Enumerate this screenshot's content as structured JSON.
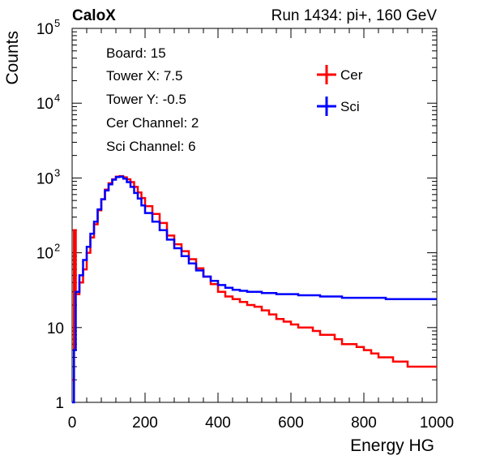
{
  "header": {
    "left_label": "CaloX",
    "right_label": "Run 1434: pi+, 160 GeV"
  },
  "info_box": {
    "lines": [
      "Board: 15",
      "Tower X: 7.5",
      "Tower Y: -0.5",
      "Cer Channel: 2",
      "Sci Channel: 6"
    ]
  },
  "chart_data": {
    "type": "line",
    "title": "",
    "xlabel": "Energy HG",
    "ylabel": "Counts",
    "xlim": [
      0,
      1000
    ],
    "ylim": [
      1,
      100000
    ],
    "yscale": "log",
    "grid": false,
    "legend_position": "top-right",
    "x_ticks": [
      "0",
      "200",
      "400",
      "600",
      "800",
      "1000"
    ],
    "y_ticks": [
      {
        "base": "1",
        "exp": ""
      },
      {
        "base": "10",
        "exp": ""
      },
      {
        "base": "10",
        "exp": "2"
      },
      {
        "base": "10",
        "exp": "3"
      },
      {
        "base": "10",
        "exp": "4"
      },
      {
        "base": "10",
        "exp": "5"
      }
    ],
    "series": [
      {
        "name": "Cer",
        "color": "#ff0000",
        "x": [
          0,
          5,
          10,
          20,
          30,
          40,
          50,
          60,
          70,
          80,
          90,
          100,
          110,
          120,
          130,
          140,
          150,
          160,
          170,
          180,
          190,
          200,
          220,
          240,
          260,
          280,
          300,
          320,
          340,
          360,
          380,
          400,
          420,
          440,
          460,
          480,
          500,
          520,
          540,
          560,
          580,
          600,
          620,
          640,
          660,
          680,
          700,
          720,
          740,
          760,
          780,
          800,
          820,
          840,
          860,
          880,
          900,
          920,
          940,
          960,
          980,
          1000
        ],
        "y": [
          2,
          200,
          28,
          40,
          60,
          100,
          160,
          240,
          370,
          520,
          700,
          850,
          960,
          1040,
          1060,
          1020,
          960,
          880,
          760,
          640,
          540,
          420,
          330,
          250,
          170,
          130,
          105,
          82,
          62,
          48,
          38,
          30,
          26,
          24,
          22,
          20,
          19,
          17,
          15,
          13,
          12,
          11,
          10,
          10,
          9,
          8,
          8,
          7,
          6,
          6,
          5.5,
          5,
          4.5,
          4,
          4,
          3.5,
          3.5,
          3,
          3,
          3,
          3,
          3
        ]
      },
      {
        "name": "Sci",
        "color": "#0000ff",
        "x": [
          0,
          5,
          10,
          20,
          30,
          40,
          50,
          60,
          70,
          80,
          90,
          100,
          110,
          120,
          130,
          140,
          150,
          160,
          170,
          180,
          190,
          200,
          220,
          240,
          260,
          280,
          300,
          320,
          340,
          360,
          380,
          400,
          420,
          440,
          460,
          480,
          500,
          520,
          540,
          560,
          580,
          600,
          620,
          640,
          660,
          680,
          700,
          720,
          740,
          760,
          780,
          800,
          820,
          840,
          860,
          880,
          900,
          920,
          940,
          960,
          980,
          1000
        ],
        "y": [
          1,
          5,
          30,
          50,
          80,
          120,
          180,
          260,
          380,
          520,
          680,
          820,
          950,
          1030,
          1040,
          980,
          880,
          760,
          630,
          530,
          430,
          340,
          260,
          200,
          150,
          115,
          90,
          72,
          58,
          48,
          42,
          37,
          34,
          32,
          31,
          30,
          30,
          29,
          29,
          28,
          28,
          28,
          27,
          27,
          27,
          26,
          26,
          26,
          25,
          25,
          25,
          25,
          25,
          25,
          24,
          24,
          24,
          24,
          24,
          24,
          24,
          24
        ]
      }
    ]
  }
}
